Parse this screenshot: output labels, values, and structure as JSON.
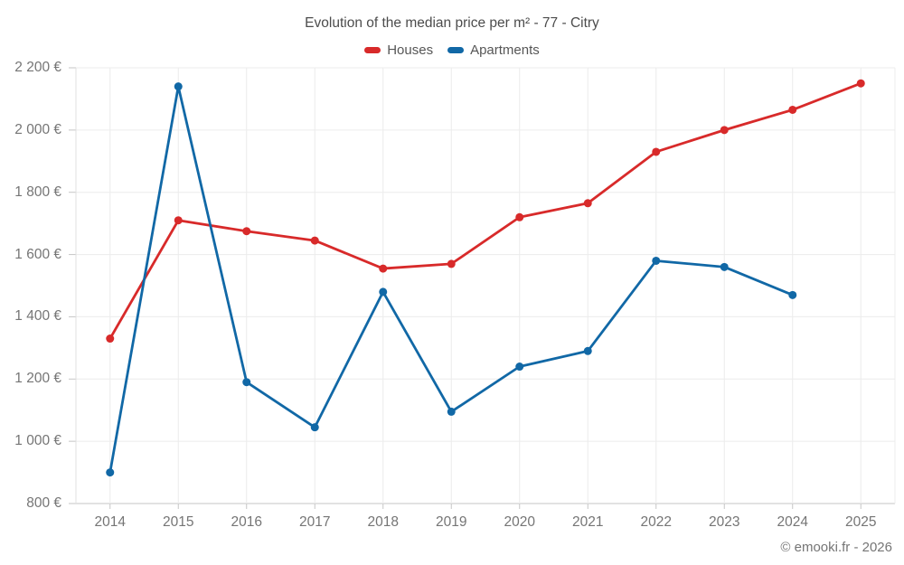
{
  "chart_data": {
    "type": "line",
    "title": "Evolution of the median price per m² - 77 - Citry",
    "x": [
      "2014",
      "2015",
      "2016",
      "2017",
      "2018",
      "2019",
      "2020",
      "2021",
      "2022",
      "2023",
      "2024",
      "2025"
    ],
    "series": [
      {
        "name": "Houses",
        "color": "#d82a2a",
        "values": [
          1330,
          1710,
          1675,
          1645,
          1555,
          1570,
          1720,
          1765,
          1930,
          2000,
          2065,
          2150
        ]
      },
      {
        "name": "Apartments",
        "color": "#1168a6",
        "values": [
          900,
          2140,
          1190,
          1045,
          1480,
          1095,
          1240,
          1290,
          1580,
          1560,
          1470,
          null
        ]
      }
    ],
    "ylim": [
      800,
      2200
    ],
    "ytick_step": 200,
    "y_tick_labels": [
      "800 €",
      "1 000 €",
      "1 200 €",
      "1 400 €",
      "1 600 €",
      "1 800 €",
      "2 000 €",
      "2 200 €"
    ],
    "grid": true,
    "legend_position": "top",
    "xlabel": "",
    "ylabel": ""
  },
  "watermark": "© emooki.fr - 2026",
  "colors": {
    "grid": "#ececec",
    "axis": "#c6c6c6",
    "axis_labels": "#757575",
    "title": "#4c4c4c",
    "legend_text": "#565656",
    "watermark": "#757575",
    "background": "#ffffff"
  }
}
